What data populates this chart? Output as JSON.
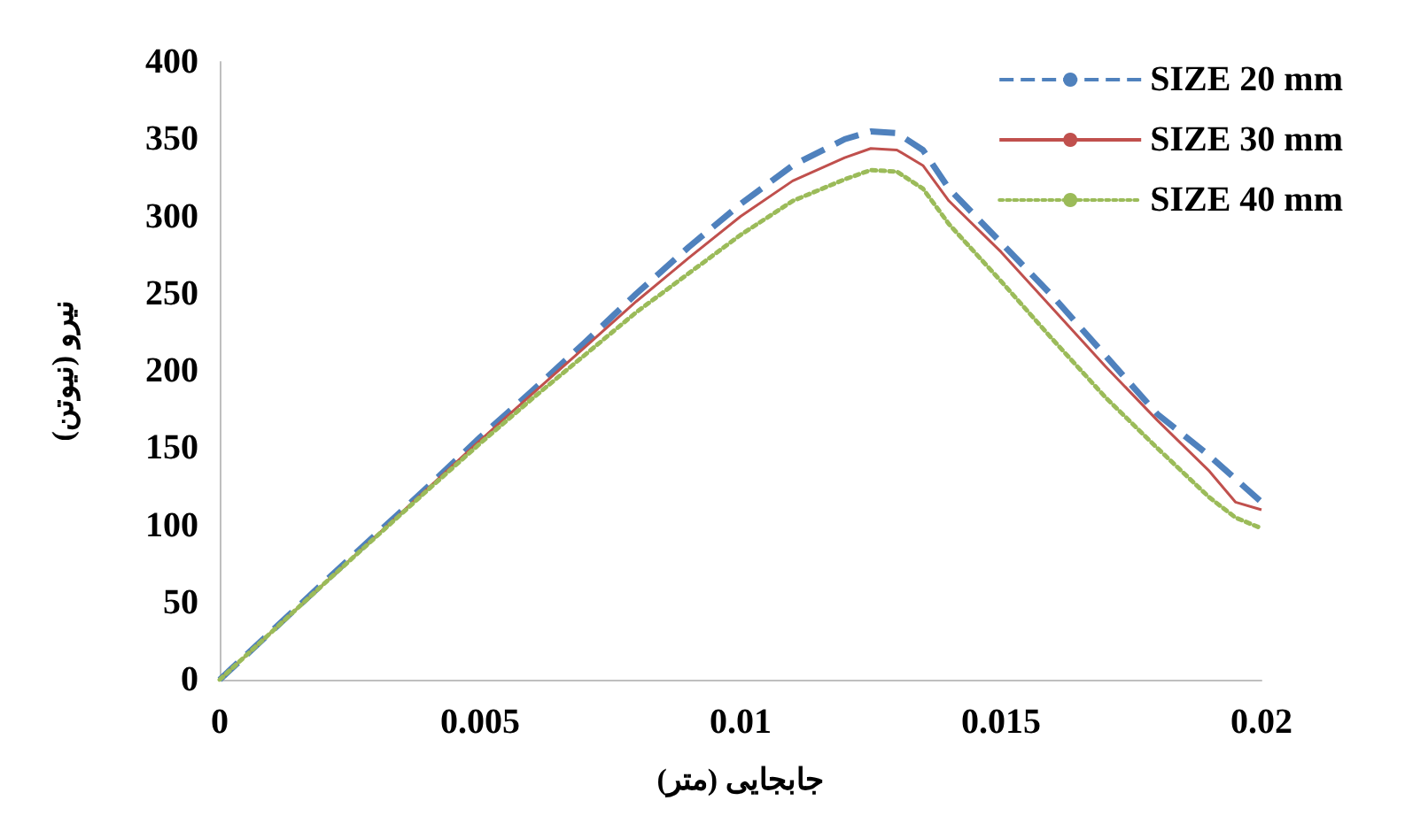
{
  "chart_data": {
    "type": "line",
    "xlabel": "جابجایی (متر)",
    "ylabel": "نیرو (نیوتن)",
    "xlim": [
      0,
      0.02
    ],
    "xticks": [
      0,
      0.005,
      0.01,
      0.015,
      0.02
    ],
    "ylim": [
      0,
      400
    ],
    "yticks": [
      0,
      50,
      100,
      150,
      200,
      250,
      300,
      350,
      400
    ],
    "grid": false,
    "legend": "top right",
    "marker": "none",
    "x": [
      0,
      0.002,
      0.004,
      0.005,
      0.006,
      0.007,
      0.008,
      0.009,
      0.01,
      0.011,
      0.012,
      0.0125,
      0.013,
      0.0135,
      0.014,
      0.015,
      0.016,
      0.017,
      0.018,
      0.019,
      0.0195,
      0.02
    ],
    "series": [
      {
        "name": "SIZE 20 mm",
        "color": "#4f81bd",
        "line_style": "dashed",
        "values": [
          0,
          63,
          125,
          157,
          187,
          218,
          250,
          280,
          308,
          333,
          350,
          355,
          354,
          343,
          318,
          283,
          248,
          210,
          172,
          145,
          130,
          115
        ]
      },
      {
        "name": "SIZE 30 mm",
        "color": "#c0504d",
        "line_style": "solid",
        "values": [
          0,
          62,
          124,
          155,
          185,
          215,
          245,
          273,
          300,
          323,
          338,
          344,
          343,
          333,
          310,
          277,
          240,
          203,
          168,
          135,
          115,
          110
        ]
      },
      {
        "name": "SIZE 40 mm",
        "color": "#9bbb59",
        "line_style": "dotted",
        "values": [
          0,
          62,
          123,
          153,
          182,
          210,
          238,
          263,
          288,
          310,
          324,
          330,
          329,
          318,
          295,
          258,
          220,
          183,
          150,
          118,
          105,
          98
        ]
      }
    ]
  }
}
